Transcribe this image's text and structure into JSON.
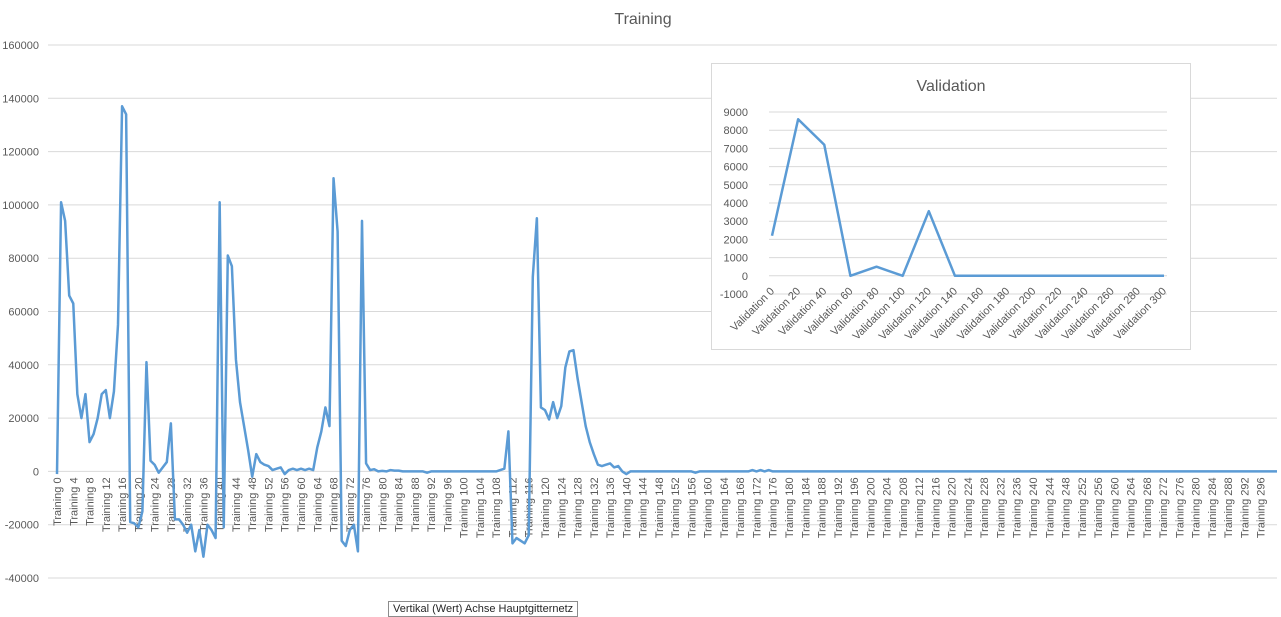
{
  "chart_data": [
    {
      "type": "line",
      "title": "Training",
      "xlabel": "",
      "ylabel": "",
      "ylim": [
        -40000,
        160000
      ],
      "yticks": [
        -40000,
        -20000,
        0,
        20000,
        40000,
        60000,
        80000,
        100000,
        120000,
        140000,
        160000
      ],
      "x_label_prefix": "Training ",
      "x_label_step": 4,
      "x_count": 300,
      "grid": true,
      "legend": "none",
      "color": "#5b9bd5",
      "keypoints": [
        [
          0,
          -1000
        ],
        [
          1,
          101000
        ],
        [
          2,
          94000
        ],
        [
          3,
          66000
        ],
        [
          4,
          63000
        ],
        [
          5,
          29000
        ],
        [
          6,
          20000
        ],
        [
          7,
          29000
        ],
        [
          8,
          11000
        ],
        [
          9,
          14000
        ],
        [
          10,
          20000
        ],
        [
          11,
          29000
        ],
        [
          12,
          30500
        ],
        [
          13,
          20000
        ],
        [
          14,
          30000
        ],
        [
          15,
          55000
        ],
        [
          16,
          137000
        ],
        [
          17,
          134000
        ],
        [
          18,
          -19000
        ],
        [
          19,
          -19500
        ],
        [
          20,
          -21000
        ],
        [
          21,
          -15000
        ],
        [
          22,
          41000
        ],
        [
          23,
          4000
        ],
        [
          24,
          2500
        ],
        [
          25,
          -500
        ],
        [
          26,
          1500
        ],
        [
          27,
          3500
        ],
        [
          28,
          18000
        ],
        [
          29,
          -18000
        ],
        [
          30,
          -18000
        ],
        [
          31,
          -20000
        ],
        [
          32,
          -23000
        ],
        [
          33,
          -20000
        ],
        [
          34,
          -30000
        ],
        [
          35,
          -22000
        ],
        [
          36,
          -32000
        ],
        [
          37,
          -20000
        ],
        [
          38,
          -22000
        ],
        [
          39,
          -25000
        ],
        [
          40,
          101000
        ],
        [
          41,
          -21000
        ],
        [
          42,
          81000
        ],
        [
          43,
          77000
        ],
        [
          44,
          42000
        ],
        [
          45,
          26000
        ],
        [
          46,
          17000
        ],
        [
          47,
          8000
        ],
        [
          48,
          -2000
        ],
        [
          49,
          6500
        ],
        [
          50,
          3500
        ],
        [
          51,
          2500
        ],
        [
          52,
          2000
        ],
        [
          53,
          500
        ],
        [
          54,
          1000
        ],
        [
          55,
          1500
        ],
        [
          56,
          -1000
        ],
        [
          57,
          500
        ],
        [
          58,
          1000
        ],
        [
          59,
          500
        ],
        [
          60,
          1000
        ],
        [
          61,
          500
        ],
        [
          62,
          1000
        ],
        [
          63,
          500
        ],
        [
          64,
          9000
        ],
        [
          65,
          15000
        ],
        [
          66,
          24000
        ],
        [
          67,
          17000
        ],
        [
          68,
          110000
        ],
        [
          69,
          90000
        ],
        [
          70,
          -26000
        ],
        [
          71,
          -28000
        ],
        [
          72,
          -22000
        ],
        [
          73,
          -20000
        ],
        [
          74,
          -30000
        ],
        [
          75,
          94000
        ],
        [
          76,
          3000
        ],
        [
          77,
          500
        ],
        [
          78,
          800
        ],
        [
          79,
          0
        ],
        [
          80,
          200
        ],
        [
          81,
          0
        ],
        [
          82,
          500
        ],
        [
          83,
          300
        ],
        [
          84,
          300
        ],
        [
          85,
          0
        ],
        [
          86,
          0
        ],
        [
          87,
          0
        ],
        [
          88,
          0
        ],
        [
          89,
          0
        ],
        [
          90,
          0
        ],
        [
          91,
          -500
        ],
        [
          92,
          0
        ],
        [
          93,
          0
        ],
        [
          94,
          0
        ],
        [
          95,
          0
        ],
        [
          108,
          0
        ],
        [
          109,
          500
        ],
        [
          110,
          1000
        ],
        [
          111,
          15000
        ],
        [
          112,
          -27000
        ],
        [
          113,
          -25000
        ],
        [
          114,
          -26000
        ],
        [
          115,
          -27000
        ],
        [
          116,
          -24000
        ],
        [
          117,
          73000
        ],
        [
          118,
          95000
        ],
        [
          119,
          24000
        ],
        [
          120,
          23000
        ],
        [
          121,
          19500
        ],
        [
          122,
          26000
        ],
        [
          123,
          20000
        ],
        [
          124,
          24500
        ],
        [
          125,
          39000
        ],
        [
          126,
          45000
        ],
        [
          127,
          45500
        ],
        [
          128,
          35000
        ],
        [
          129,
          26000
        ],
        [
          130,
          17000
        ],
        [
          131,
          11000
        ],
        [
          132,
          6500
        ],
        [
          133,
          2500
        ],
        [
          134,
          2000
        ],
        [
          135,
          2500
        ],
        [
          136,
          3000
        ],
        [
          137,
          1500
        ],
        [
          138,
          2000
        ],
        [
          139,
          0
        ],
        [
          140,
          -1000
        ],
        [
          141,
          0
        ],
        [
          142,
          0
        ],
        [
          156,
          0
        ],
        [
          157,
          -500
        ],
        [
          158,
          0
        ],
        [
          159,
          0
        ],
        [
          170,
          0
        ],
        [
          171,
          500
        ],
        [
          172,
          0
        ],
        [
          173,
          500
        ],
        [
          174,
          0
        ],
        [
          175,
          500
        ],
        [
          176,
          0
        ],
        [
          300,
          0
        ]
      ]
    },
    {
      "type": "line",
      "title": "Validation",
      "xlabel": "",
      "ylabel": "",
      "ylim": [
        -1000,
        9000
      ],
      "yticks": [
        -1000,
        0,
        1000,
        2000,
        3000,
        4000,
        5000,
        6000,
        7000,
        8000,
        9000
      ],
      "categories": [
        "Validation 0",
        "Validation 20",
        "Validation 40",
        "Validation 60",
        "Validation 80",
        "Validation 100",
        "Validation 120",
        "Validation 140",
        "Validation 160",
        "Validation 180",
        "Validation 200",
        "Validation 220",
        "Validation 240",
        "Validation 260",
        "Validation 280",
        "Validation 300"
      ],
      "values": [
        2200,
        8600,
        7200,
        0,
        500,
        0,
        3550,
        0,
        0,
        0,
        0,
        0,
        0,
        0,
        0,
        0
      ],
      "grid": true,
      "legend": "none",
      "color": "#5b9bd5"
    }
  ],
  "tooltip": "Vertikal (Wert) Achse Hauptgitternetz"
}
